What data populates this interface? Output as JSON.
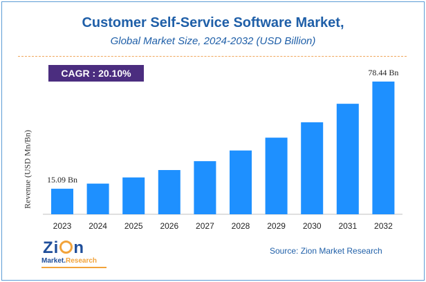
{
  "header": {
    "title": "Customer Self-Service Software Market,",
    "subtitle": "Global Market Size, 2024-2032 (USD Billion)"
  },
  "badge": {
    "cagr": "CAGR :  20.10%"
  },
  "source": "Source: Zion Market Research",
  "logo": {
    "main_left": "Zi",
    "main_right": "n",
    "sub_main": "Market.",
    "sub_accent": "Research"
  },
  "colors": {
    "bar": "#1e90ff",
    "title": "#1f5fa8",
    "badge": "#4b2d7f",
    "logo_accent": "#f2a33a"
  },
  "chart_data": {
    "type": "bar",
    "categories": [
      "2023",
      "2024",
      "2025",
      "2026",
      "2027",
      "2028",
      "2029",
      "2030",
      "2031",
      "2032"
    ],
    "values": [
      15.09,
      18.12,
      21.77,
      26.14,
      31.39,
      37.7,
      45.28,
      54.38,
      65.31,
      78.44
    ],
    "data_labels": {
      "2023": "15.09 Bn",
      "2032": "78.44 Bn"
    },
    "ylabel": "Revenue (USD Mn/Bn)",
    "ylim": [
      0,
      80
    ],
    "grid": false,
    "legend": "none"
  }
}
